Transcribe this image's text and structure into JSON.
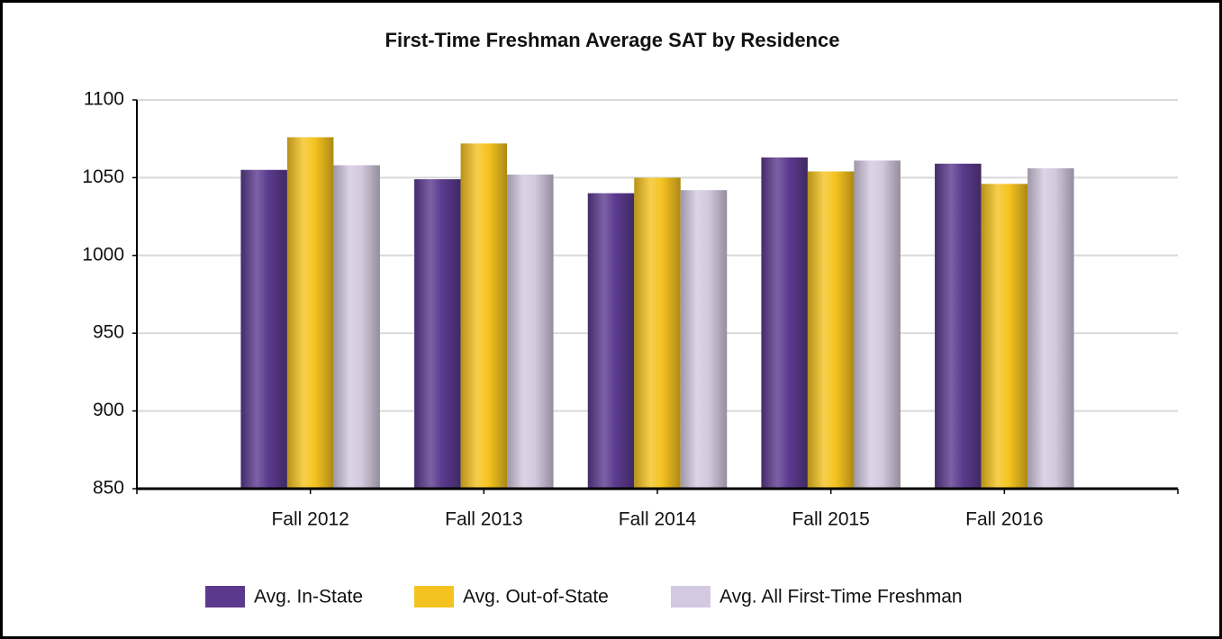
{
  "chart_data": {
    "type": "bar",
    "title": "First-Time Freshman Average SAT by Residence",
    "categories": [
      "Fall 2012",
      "Fall 2013",
      "Fall 2014",
      "Fall 2015",
      "Fall 2016"
    ],
    "series": [
      {
        "name": "Avg. In-State",
        "color": "#5b3a8e",
        "values": [
          1055,
          1049,
          1040,
          1063,
          1059
        ]
      },
      {
        "name": "Avg. Out-of-State",
        "color": "#f5c320",
        "values": [
          1076,
          1072,
          1050,
          1054,
          1046
        ]
      },
      {
        "name": "Avg. All First-Time Freshman",
        "color": "#d3c9e0",
        "values": [
          1058,
          1052,
          1042,
          1061,
          1056
        ]
      }
    ],
    "ylim": [
      850,
      1100
    ],
    "yticks": [
      850,
      900,
      950,
      1000,
      1050,
      1100
    ],
    "grid": true,
    "legend": "bottom"
  }
}
